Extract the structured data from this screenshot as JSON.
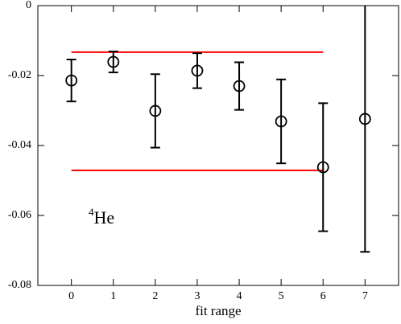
{
  "chart_data": {
    "type": "scatter",
    "xlabel": "fit range",
    "x": [
      0,
      1,
      2,
      3,
      4,
      5,
      6,
      7
    ],
    "series": [
      {
        "color": "#000000",
        "values": [
          -0.0214,
          -0.0161,
          -0.0301,
          -0.0186,
          -0.023,
          -0.0331,
          -0.0462,
          -0.0324
        ],
        "errors": [
          0.006,
          0.003,
          0.0105,
          0.005,
          0.0068,
          0.012,
          0.0183,
          0.038
        ]
      }
    ],
    "hlines": [
      {
        "y": -0.0133,
        "x": [
          0,
          6
        ],
        "color": "#ff0000"
      },
      {
        "y": -0.0471,
        "x": [
          0,
          6
        ],
        "color": "#ff0000"
      }
    ],
    "annotation": {
      "mass": "4",
      "symbol": "He"
    },
    "xlim": [
      -0.8,
      7.8
    ],
    "xticks": [
      0,
      1,
      2,
      3,
      4,
      5,
      6,
      7
    ],
    "ylim": [
      -0.08,
      0
    ],
    "yticks": [
      0,
      -0.02,
      -0.04,
      -0.06,
      -0.08
    ]
  }
}
